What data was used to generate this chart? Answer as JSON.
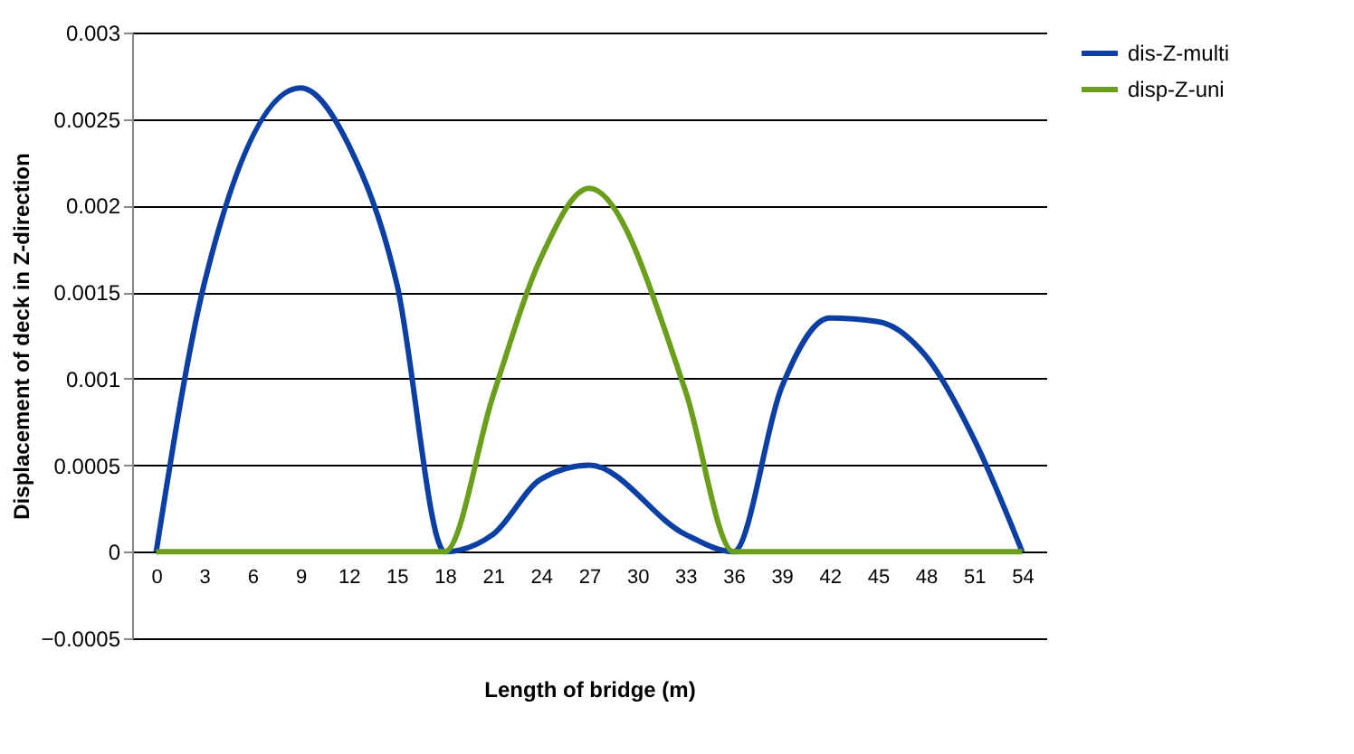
{
  "chart_data": {
    "type": "line",
    "xlabel": "Length of bridge (m)",
    "ylabel": "Displacement of deck in Z-direction",
    "x": [
      0,
      3,
      9,
      12,
      15,
      18,
      21,
      24,
      27,
      33,
      36,
      39,
      42,
      45,
      48,
      51,
      54
    ],
    "series": [
      {
        "name": "dis-Z-multi",
        "color": "#0b3fa3",
        "values": [
          0,
          0.00155,
          0.00268,
          0.00235,
          0.00155,
          0,
          0.0001,
          0.00042,
          0.0005,
          0.0001,
          0,
          0.00095,
          0.00135,
          0.00133,
          0.00113,
          0.00065,
          0
        ]
      },
      {
        "name": "disp-Z-uni",
        "color": "#6b9f1b",
        "values": [
          0,
          0,
          0,
          0,
          0,
          0,
          0.0009,
          0.0017,
          0.0021,
          0.00093,
          0,
          0,
          0,
          0,
          0,
          0,
          0
        ]
      }
    ],
    "xlim": [
      -1.5,
      55.5
    ],
    "xticks": [
      0,
      3,
      6,
      9,
      12,
      15,
      18,
      21,
      24,
      27,
      30,
      33,
      36,
      39,
      42,
      45,
      48,
      51,
      54
    ],
    "ylim": [
      -0.0005,
      0.003
    ],
    "yticks": [
      -0.0005,
      0,
      0.0005,
      0.001,
      0.0015,
      0.002,
      0.0025,
      0.003
    ],
    "grid": "y",
    "legend": "right",
    "marker": "none",
    "line_style": "solid"
  }
}
